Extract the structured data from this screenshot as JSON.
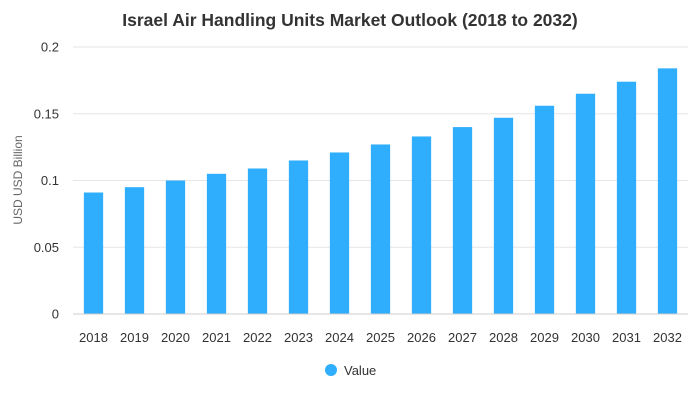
{
  "chart_data": {
    "type": "bar",
    "title": "Israel Air Handling Units Market Outlook (2018 to 2032)",
    "xlabel": "",
    "ylabel": "USD USD Billion",
    "categories": [
      "2018",
      "2019",
      "2020",
      "2021",
      "2022",
      "2023",
      "2024",
      "2025",
      "2026",
      "2027",
      "2028",
      "2029",
      "2030",
      "2031",
      "2032"
    ],
    "series": [
      {
        "name": "Value",
        "values": [
          0.091,
          0.095,
          0.1,
          0.105,
          0.109,
          0.115,
          0.121,
          0.127,
          0.133,
          0.14,
          0.147,
          0.156,
          0.165,
          0.174,
          0.184
        ],
        "color": "#2eaefc"
      }
    ],
    "ylim": [
      0,
      0.2
    ],
    "yticks": [
      "0",
      "0.05",
      "0.1",
      "0.15",
      "0.2"
    ],
    "ytick_values": [
      0,
      0.05,
      0.1,
      0.15,
      0.2
    ],
    "grid": true,
    "legend_position": "bottom-center",
    "colors": {
      "bar": "#2eaefc",
      "grid": "#e6e6e6",
      "axis_line": "#cccccc",
      "text": "#333333"
    }
  }
}
